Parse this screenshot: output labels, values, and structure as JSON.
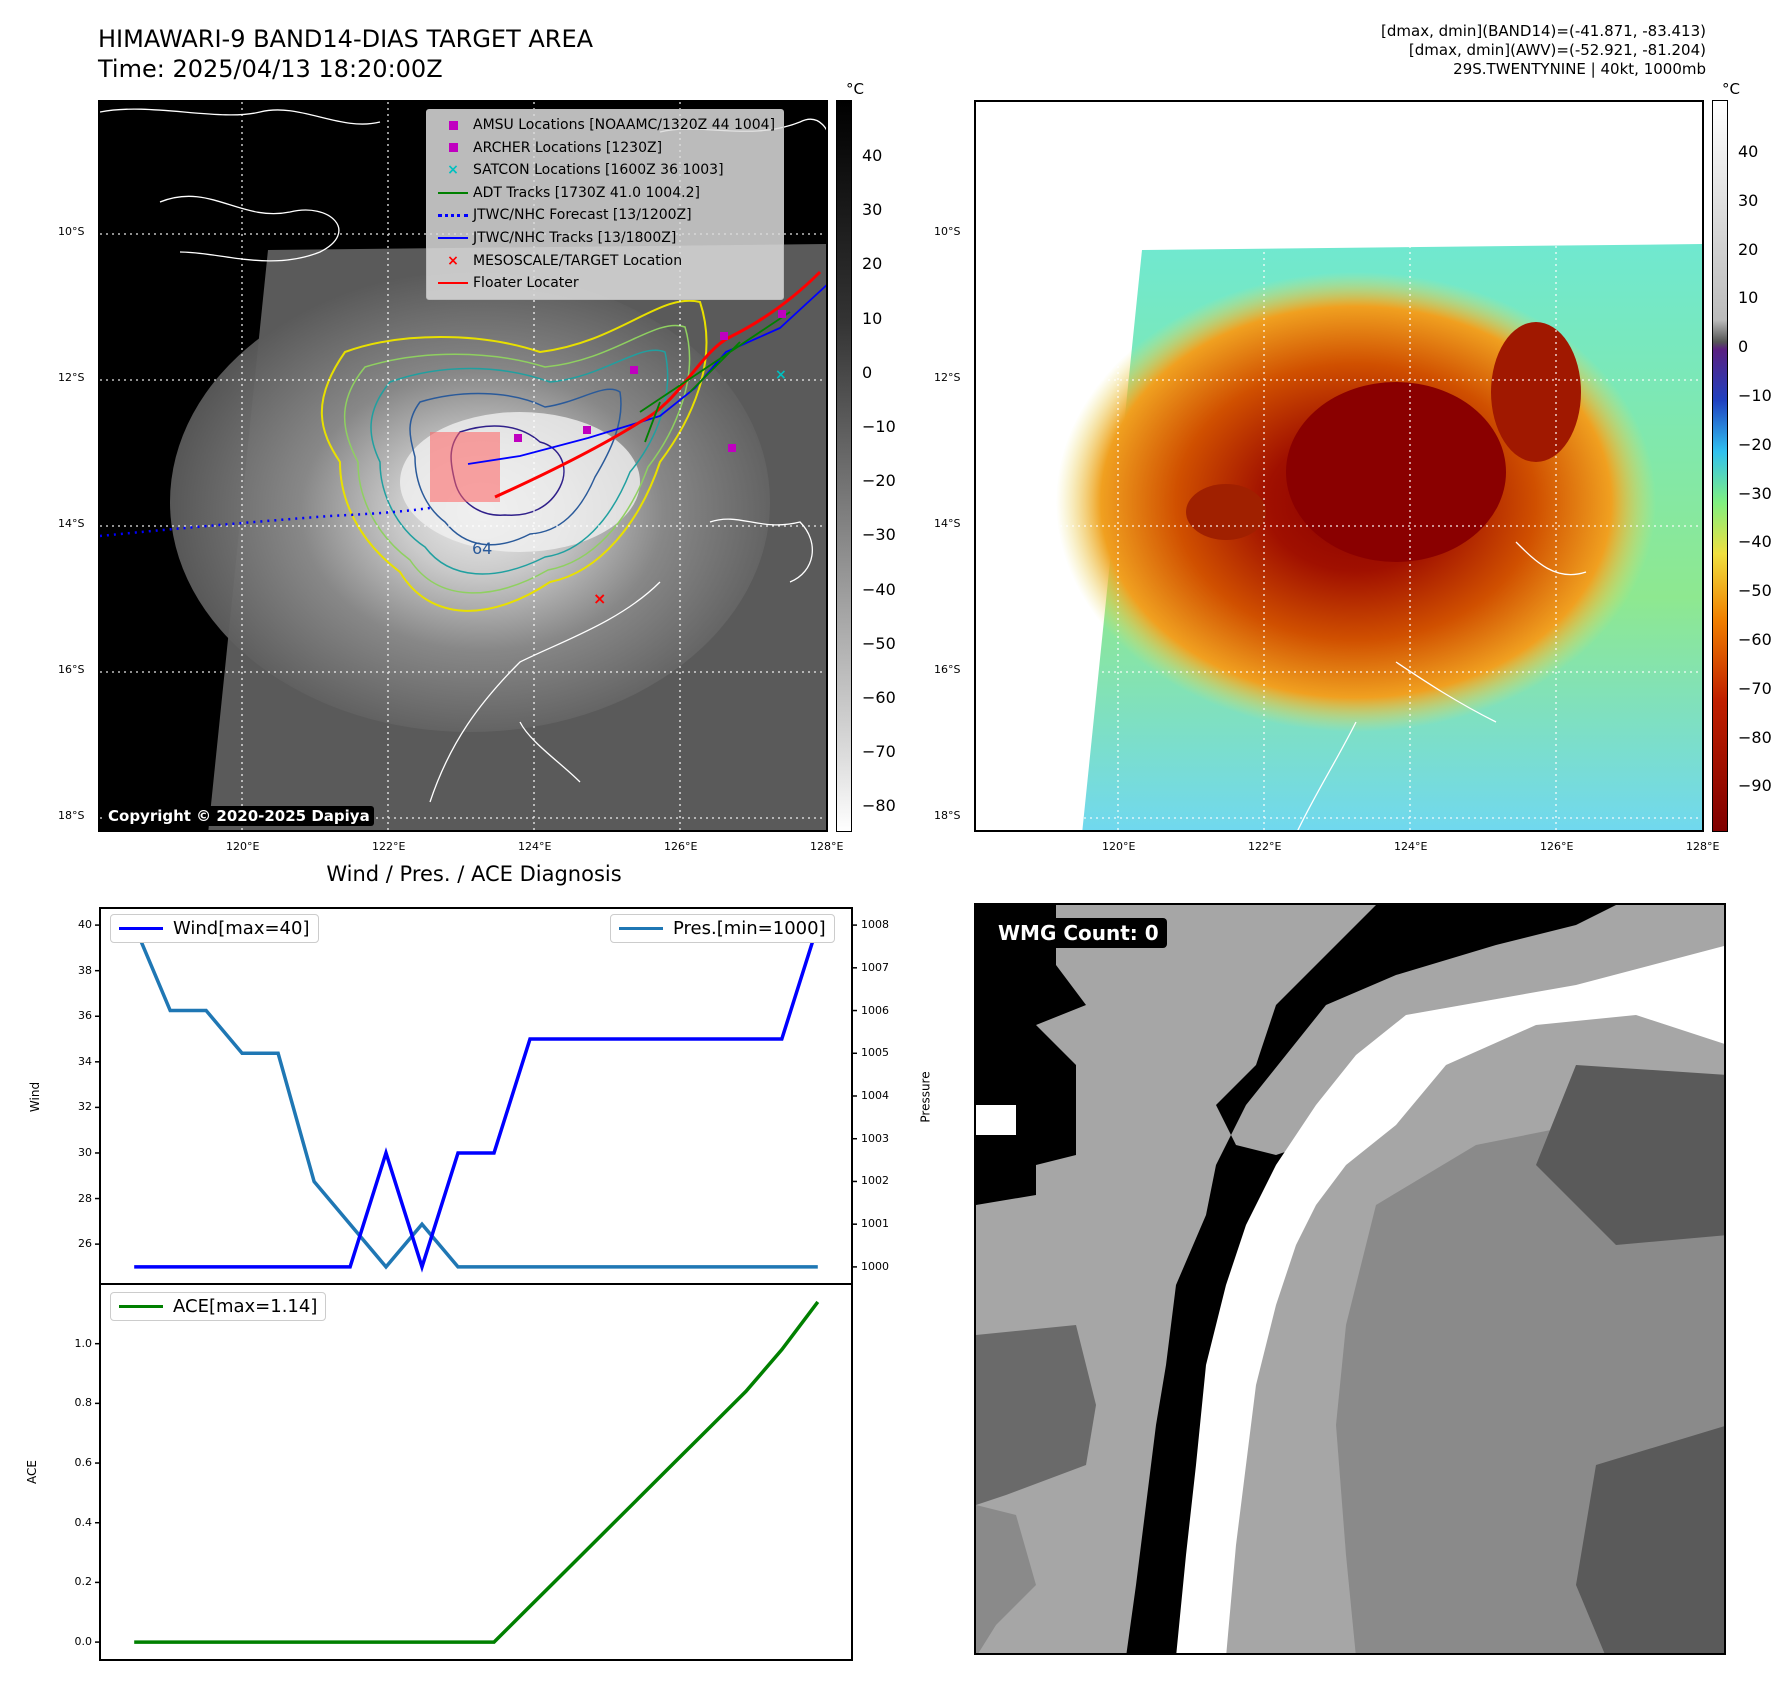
{
  "header": {
    "title_line1": "HIMAWARI-9 BAND14-DIAS TARGET AREA",
    "title_line2": "Time: 2025/04/13 18:20:00Z",
    "stats_line1": "[dmax, dmin](BAND14)=(-41.871, -83.413)",
    "stats_line2": "[dmax, dmin](AWV)=(-52.921, -81.204)",
    "stats_line3": "29S.TWENTYNINE | 40kt, 1000mb"
  },
  "map": {
    "lat_labels": [
      "10°S",
      "12°S",
      "14°S",
      "16°S",
      "18°S"
    ],
    "lon_labels": [
      "120°E",
      "122°E",
      "124°E",
      "126°E",
      "128°E"
    ],
    "copyright": "Copyright © 2020-2025 Dapiya",
    "contour_label": "64",
    "legend": [
      {
        "label": "AMSU Locations [NOAAMC/1320Z 44 1004]",
        "color": "#c000c0"
      },
      {
        "label": "ARCHER Locations [1230Z]",
        "color": "#c000c0"
      },
      {
        "label": "SATCON Locations [1600Z 36 1003]",
        "color": "#00c0c0"
      },
      {
        "label": "ADT Tracks [1730Z 41.0 1004.2]",
        "color": "#008000"
      },
      {
        "label": "JTWC/NHC Forecast [13/1200Z]",
        "color": "#0000ff"
      },
      {
        "label": "JTWC/NHC Tracks [13/1800Z]",
        "color": "#0000ff"
      },
      {
        "label": "MESOSCALE/TARGET Location",
        "color": "#ff0000"
      },
      {
        "label": "Floater Locater",
        "color": "#ff0000"
      }
    ]
  },
  "colorbars": {
    "unit": "°C",
    "gray_ticks": [
      "40",
      "30",
      "20",
      "10",
      "0",
      "−10",
      "−20",
      "−30",
      "−40",
      "−50",
      "−60",
      "−70",
      "−80"
    ],
    "color_ticks": [
      "40",
      "30",
      "20",
      "10",
      "0",
      "−10",
      "−20",
      "−30",
      "−40",
      "−50",
      "−60",
      "−70",
      "−80",
      "−90"
    ]
  },
  "diagnosis": {
    "title": "Wind / Pres. / ACE Diagnosis",
    "wind_ylabel": "Wind",
    "pres_ylabel": "Pressure",
    "ace_ylabel": "ACE",
    "wind_legend": "Wind[max=40]",
    "pres_legend": "Pres.[min=1000]",
    "ace_legend": "ACE[max=1.14]",
    "wind_ticks": [
      "40",
      "38",
      "36",
      "34",
      "32",
      "30",
      "28",
      "26"
    ],
    "pres_ticks": [
      "1008",
      "1007",
      "1006",
      "1005",
      "1004",
      "1003",
      "1002",
      "1001",
      "1000"
    ],
    "ace_ticks": [
      "1.0",
      "0.8",
      "0.6",
      "0.4",
      "0.2",
      "0.0"
    ]
  },
  "wmg": {
    "badge": "WMG Count: 0"
  },
  "chart_data": [
    {
      "type": "line",
      "title": "Wind / Pres. / ACE Diagnosis",
      "x": [
        0,
        1,
        2,
        3,
        4,
        5,
        6,
        7,
        8,
        9,
        10,
        11,
        12,
        13,
        14,
        15,
        16,
        17,
        18,
        19
      ],
      "series": [
        {
          "name": "Wind[max=40]",
          "axis": "left",
          "color": "#0000ff",
          "values": [
            25,
            25,
            25,
            25,
            25,
            25,
            25,
            30,
            25,
            30,
            30,
            35,
            35,
            35,
            35,
            35,
            35,
            35,
            35,
            40
          ]
        },
        {
          "name": "Pres.[min=1000]",
          "axis": "right",
          "color": "#1f77b4",
          "values": [
            1008,
            1006,
            1006,
            1005,
            1005,
            1002,
            1001,
            1000,
            1001,
            1000,
            1000,
            1000,
            1000,
            1000,
            1000,
            1000,
            1000,
            1000,
            1000,
            1000
          ]
        }
      ],
      "ylabel": "Wind",
      "ylim": [
        24.25,
        40.75
      ],
      "y2label": "Pressure",
      "y2lim": [
        999.6,
        1008.4
      ]
    },
    {
      "type": "line",
      "x": [
        0,
        1,
        2,
        3,
        4,
        5,
        6,
        7,
        8,
        9,
        10,
        11,
        12,
        13,
        14,
        15,
        16,
        17,
        18,
        19
      ],
      "series": [
        {
          "name": "ACE[max=1.14]",
          "color": "#008000",
          "values": [
            0,
            0,
            0,
            0,
            0,
            0,
            0,
            0,
            0,
            0,
            0,
            0.12,
            0.24,
            0.36,
            0.48,
            0.6,
            0.72,
            0.84,
            0.98,
            1.14
          ]
        }
      ],
      "ylabel": "ACE",
      "ylim": [
        -0.06,
        1.2
      ]
    }
  ]
}
